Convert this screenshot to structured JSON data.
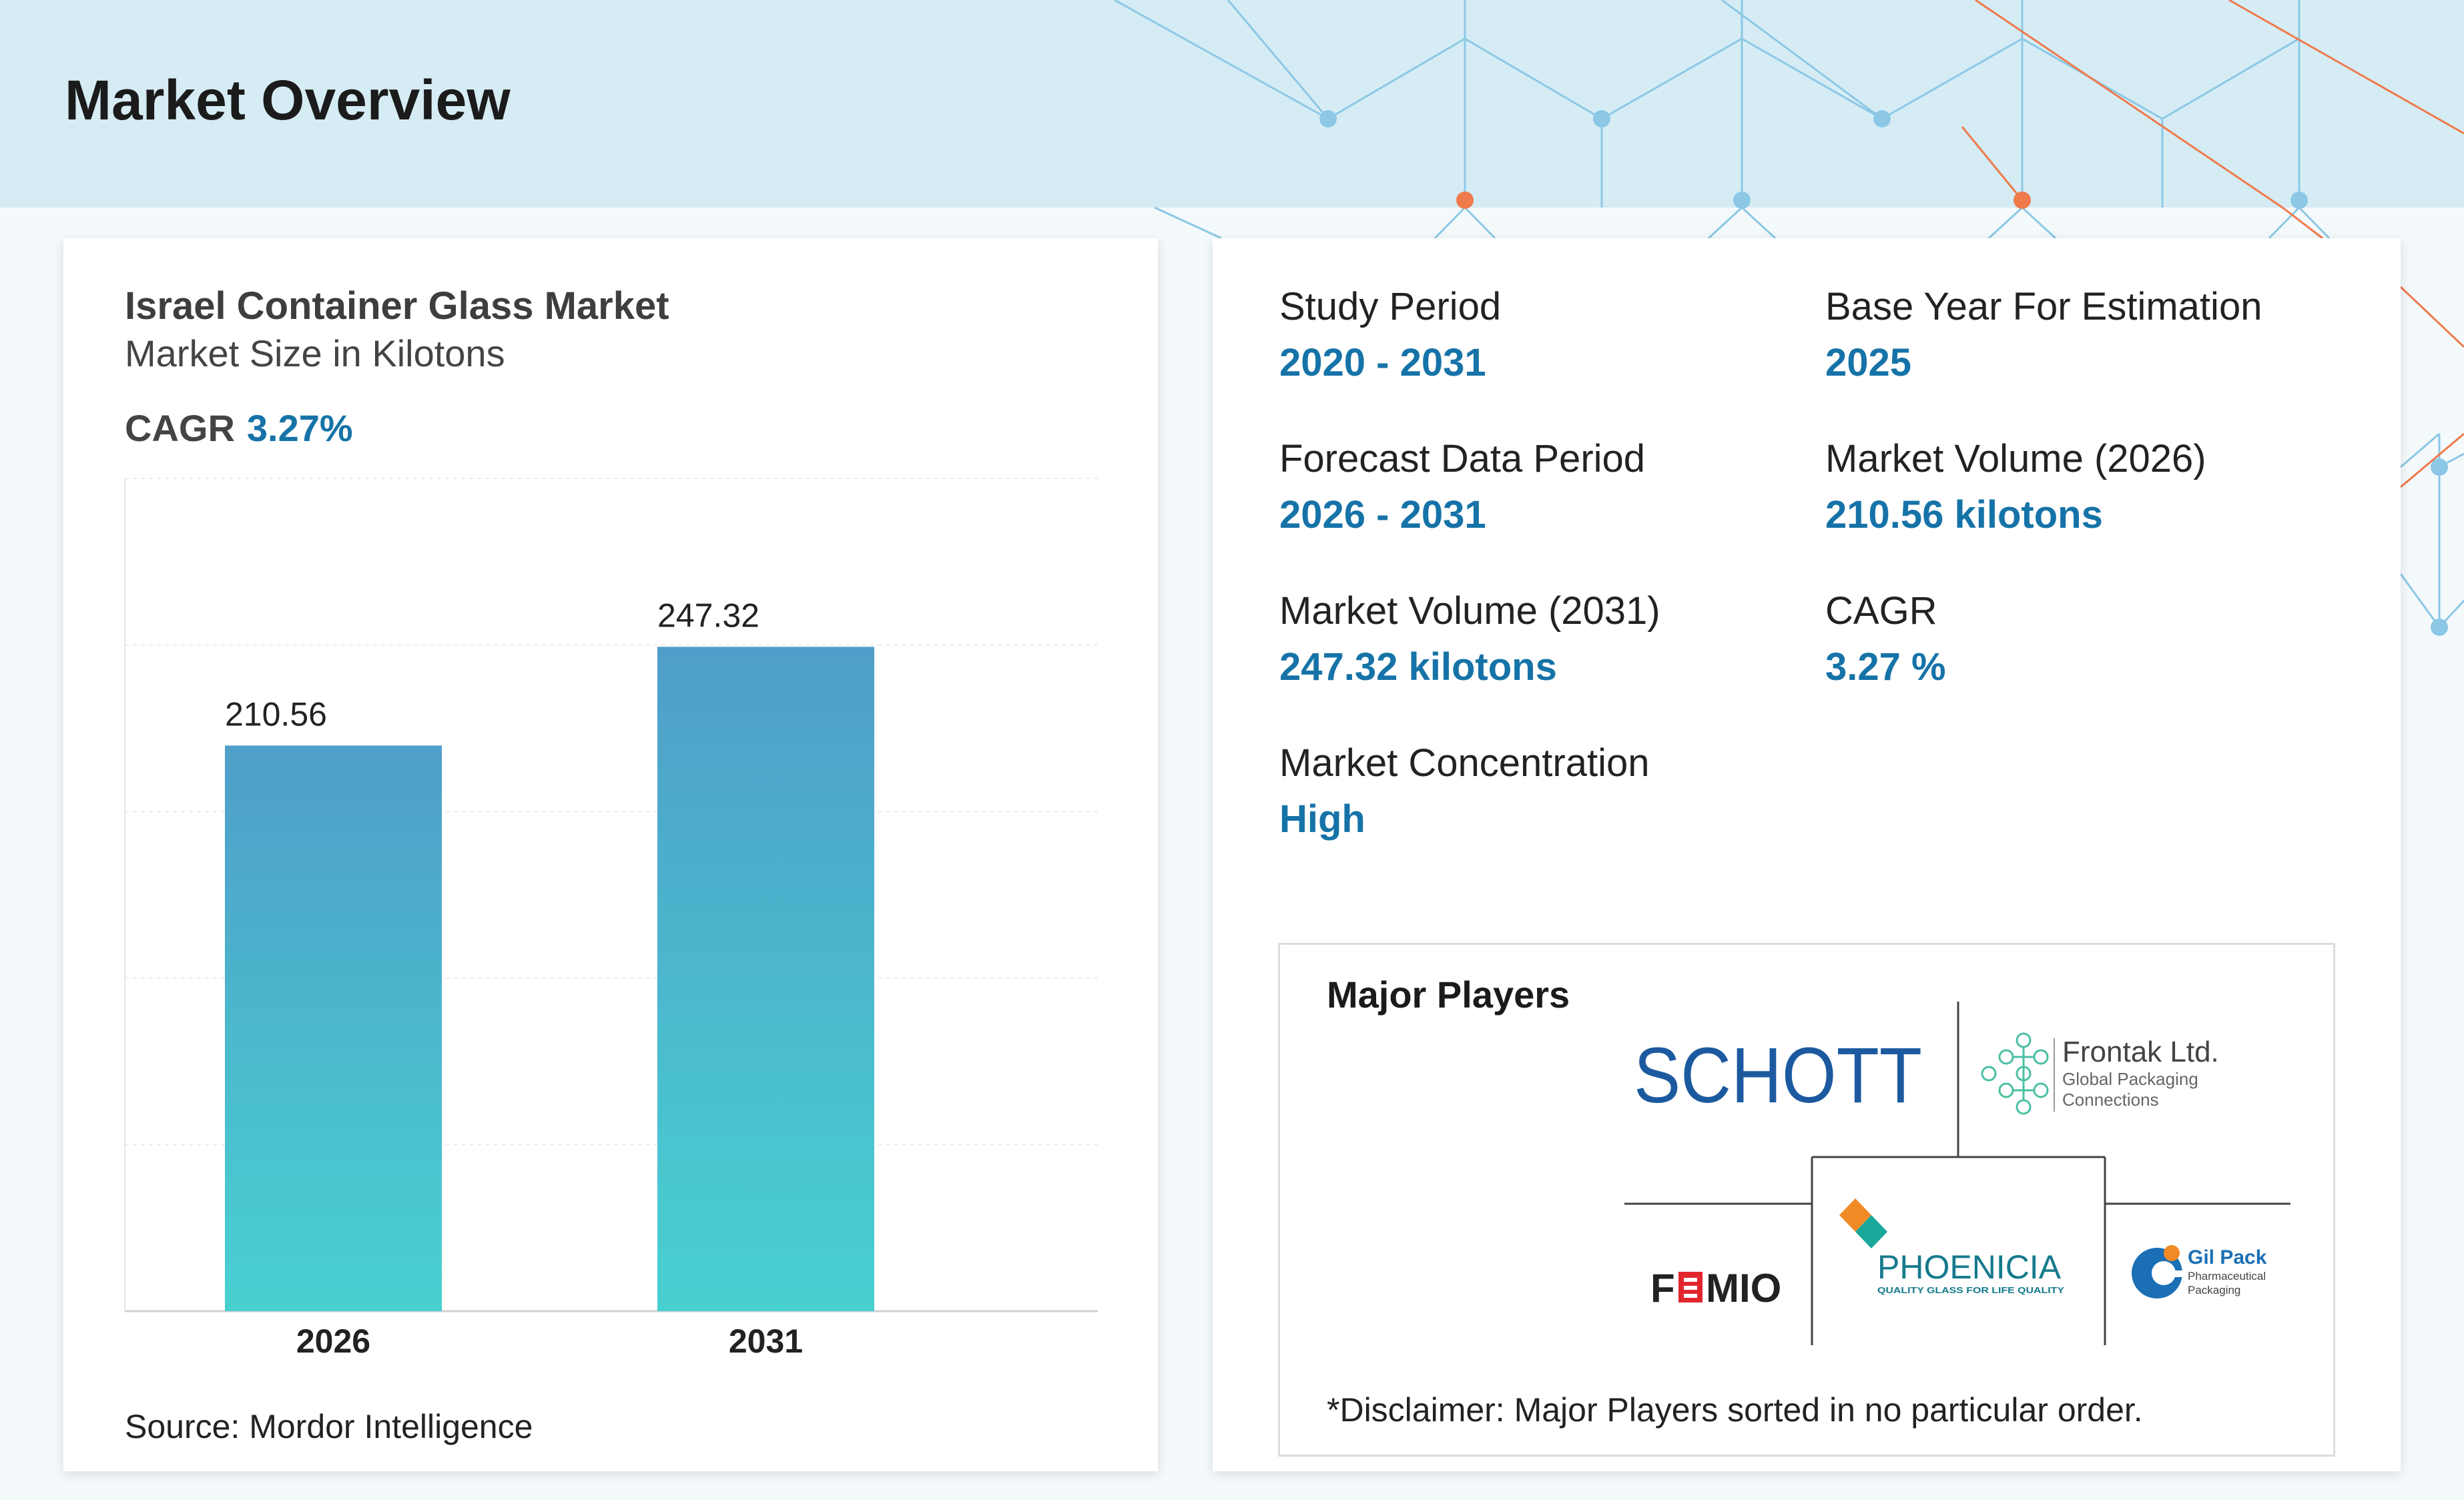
{
  "page_title": "Market Overview",
  "chart_data": {
    "type": "bar",
    "title": "Israel Container Glass Market",
    "subtitle": "Market Size in Kilotons",
    "categories": [
      "2026",
      "2031"
    ],
    "values": [
      210.56,
      247.32
    ],
    "value_labels": [
      "210.56",
      "247.32"
    ],
    "cagr_label": "CAGR",
    "cagr_value": "3.27%",
    "xlabel": "",
    "ylabel": "",
    "ylim": [
      0,
      310
    ],
    "grid": true,
    "bar_color_top": "#4f9ec9",
    "bar_color_bottom": "#48d1d1"
  },
  "source": "Source: Mordor Intelligence",
  "stats": [
    {
      "label": "Study Period",
      "value": "2020 - 2031"
    },
    {
      "label": "Base Year For Estimation",
      "value": "2025"
    },
    {
      "label": "Forecast Data Period",
      "value": "2026 - 2031"
    },
    {
      "label": "Market Volume (2026)",
      "value": "210.56 kilotons"
    },
    {
      "label": "Market Volume (2031)",
      "value": "247.32 kilotons"
    },
    {
      "label": "CAGR",
      "value": "3.27 %"
    },
    {
      "label": "Market Concentration",
      "value": "High"
    }
  ],
  "major_players": {
    "title": "Major Players",
    "logos": {
      "schott": "SCHOTT",
      "frontak_name": "Frontak Ltd.",
      "frontak_tag1": "Global Packaging",
      "frontak_tag2": "Connections",
      "phoenicia": "PHOENICIA",
      "phoenicia_tag": "QUALITY GLASS FOR LIFE QUALITY",
      "fimio_left": "F",
      "fimio_right": "MIO",
      "gilpack_name": "Gil Pack",
      "gilpack_tag1": "Pharmaceutical",
      "gilpack_tag2": "Packaging"
    },
    "disclaimer": "*Disclaimer: Major Players sorted in no particular order."
  },
  "colors": {
    "accent": "#1673a8",
    "header_band": "#d6ecf4",
    "network_blue": "#8cc8e6",
    "network_orange": "#ef7a4c"
  }
}
